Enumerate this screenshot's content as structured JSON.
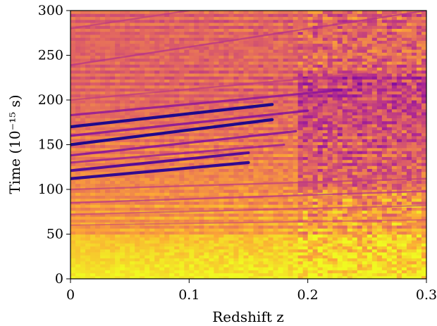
{
  "chart_data": {
    "type": "heatmap",
    "title": "",
    "xlabel": "Redshift z",
    "ylabel": "Time (10⁻¹⁵ s)",
    "xlim": [
      0,
      0.3
    ],
    "ylim": [
      0,
      300
    ],
    "x_ticks": [
      0,
      0.1,
      0.2,
      0.3
    ],
    "x_tick_labels": [
      "0",
      "0.1",
      "0.2",
      "0.3"
    ],
    "y_ticks": [
      0,
      50,
      100,
      150,
      200,
      250,
      300
    ],
    "y_tick_labels": [
      "0",
      "50",
      "100",
      "150",
      "200",
      "250",
      "300"
    ],
    "grid": false,
    "colormap": "plasma",
    "colormap_range_shown": [
      "#f0f921",
      "#fca636",
      "#e16462",
      "#b12a90",
      "#6a00a8",
      "#0d0887"
    ],
    "bright_floor_time_range": [
      0,
      50
    ],
    "noise_onset_redshift": 0.19,
    "dark_bands": [
      {
        "time_at_z0": 183,
        "time_at_z_end": 210,
        "z_end": 0.22,
        "intensity": 0.55
      },
      {
        "time_at_z0": 170,
        "time_at_z_end": 195,
        "z_end": 0.17,
        "intensity": 0.95
      },
      {
        "time_at_z0": 160,
        "time_at_z_end": 188,
        "z_end": 0.2,
        "intensity": 0.6
      },
      {
        "time_at_z0": 150,
        "time_at_z_end": 178,
        "z_end": 0.17,
        "intensity": 0.95
      },
      {
        "time_at_z0": 138,
        "time_at_z_end": 165,
        "z_end": 0.19,
        "intensity": 0.6
      },
      {
        "time_at_z0": 121,
        "time_at_z_end": 141,
        "z_end": 0.15,
        "intensity": 0.8
      },
      {
        "time_at_z0": 112,
        "time_at_z_end": 130,
        "z_end": 0.15,
        "intensity": 0.9
      },
      {
        "time_at_z0": 130,
        "time_at_z_end": 150,
        "z_end": 0.18,
        "intensity": 0.5
      },
      {
        "time_at_z0": 239,
        "time_at_z_end": 300,
        "z_end": 0.3,
        "intensity": 0.35
      },
      {
        "time_at_z0": 280,
        "time_at_z_end": 300,
        "z_end": 0.1,
        "intensity": 0.3
      },
      {
        "time_at_z0": 200,
        "time_at_z_end": 230,
        "z_end": 0.25,
        "intensity": 0.3
      },
      {
        "time_at_z0": 85,
        "time_at_z_end": 98,
        "z_end": 0.3,
        "intensity": 0.35
      },
      {
        "time_at_z0": 100,
        "time_at_z_end": 112,
        "z_end": 0.3,
        "intensity": 0.3
      },
      {
        "time_at_z0": 72,
        "time_at_z_end": 82,
        "z_end": 0.3,
        "intensity": 0.25
      },
      {
        "time_at_z0": 60,
        "time_at_z_end": 66,
        "z_end": 0.3,
        "intensity": 0.2
      }
    ]
  }
}
